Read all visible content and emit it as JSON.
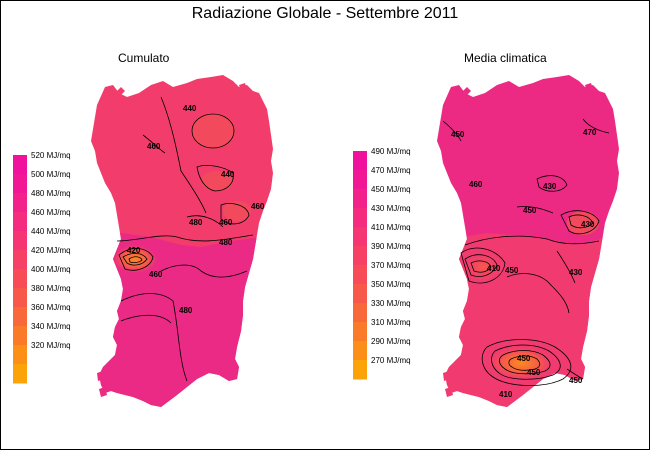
{
  "title": "Radiazione Globale - Settembre 2011",
  "panels": [
    {
      "id": "cumulato",
      "title": "Cumulato",
      "legend": [
        {
          "label": "520 MJ/mq",
          "color": "#f0119c"
        },
        {
          "label": "500 MJ/mq",
          "color": "#f21895"
        },
        {
          "label": "480 MJ/mq",
          "color": "#f3228a"
        },
        {
          "label": "460 MJ/mq",
          "color": "#f42b7f"
        },
        {
          "label": "440 MJ/mq",
          "color": "#f53672"
        },
        {
          "label": "420 MJ/mq",
          "color": "#f64066"
        },
        {
          "label": "400 MJ/mq",
          "color": "#f74c58"
        },
        {
          "label": "380 MJ/mq",
          "color": "#f8584a"
        },
        {
          "label": "360 MJ/mq",
          "color": "#f9683a"
        },
        {
          "label": "340 MJ/mq",
          "color": "#fa7a2a"
        },
        {
          "label": "320 MJ/mq",
          "color": "#fb8f18"
        },
        {
          "label": "",
          "color": "#fca30a"
        }
      ],
      "contour_labels": [
        "440",
        "460",
        "440",
        "460",
        "480",
        "460",
        "480",
        "420",
        "460",
        "480"
      ]
    },
    {
      "id": "media-climatica",
      "title": "Media climatica",
      "legend": [
        {
          "label": "490 MJ/mq",
          "color": "#f0119c"
        },
        {
          "label": "470 MJ/mq",
          "color": "#f21895"
        },
        {
          "label": "450 MJ/mq",
          "color": "#f3228a"
        },
        {
          "label": "430 MJ/mq",
          "color": "#f42b7f"
        },
        {
          "label": "410 MJ/mq",
          "color": "#f53672"
        },
        {
          "label": "390 MJ/mq",
          "color": "#f64066"
        },
        {
          "label": "370 MJ/mq",
          "color": "#f74c58"
        },
        {
          "label": "350 MJ/mq",
          "color": "#f8584a"
        },
        {
          "label": "330 MJ/mq",
          "color": "#f9683a"
        },
        {
          "label": "310 MJ/mq",
          "color": "#fa7a2a"
        },
        {
          "label": "290 MJ/mq",
          "color": "#fb8f18"
        },
        {
          "label": "270 MJ/mq",
          "color": "#fca30a"
        }
      ],
      "contour_labels": [
        "450",
        "460",
        "430",
        "450",
        "430",
        "410",
        "450",
        "430",
        "470",
        "450",
        "410",
        "450",
        "450"
      ]
    }
  ],
  "colors": {
    "region_base": "#f0337a",
    "region_high": "#e8207f",
    "region_low": "#f25a4a",
    "contour": "#000000"
  }
}
